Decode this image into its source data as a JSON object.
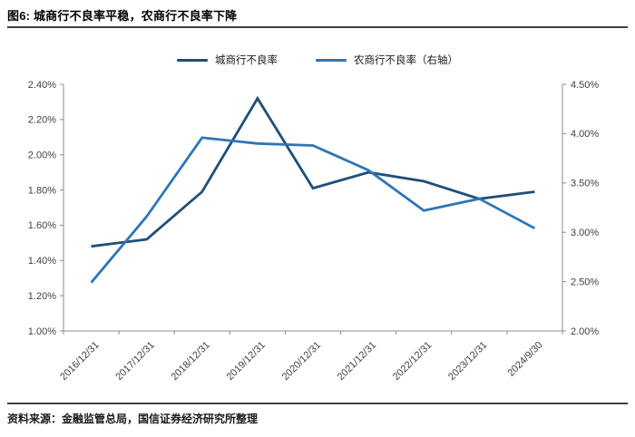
{
  "header": {
    "title": "图6: 城商行不良率平稳，农商行不良率下降"
  },
  "footer": {
    "source": "资料来源：金融监管总局，国信证券经济研究所整理"
  },
  "colors": {
    "series_city": "#1F4E79",
    "series_rural": "#2E75B6",
    "axis_line": "#8c8c8c",
    "tick_text": "#404040",
    "rule": "#3f3f3f"
  },
  "chart_data": {
    "type": "line",
    "title": "",
    "xlabel": "",
    "ylabel_left": "",
    "ylabel_right": "",
    "grid": false,
    "legend_position": "top",
    "categories": [
      "2016/12/31",
      "2017/12/31",
      "2018/12/31",
      "2019/12/31",
      "2020/12/31",
      "2021/12/31",
      "2022/12/31",
      "2023/12/31",
      "2024/9/30"
    ],
    "series": [
      {
        "name": "城商行不良率",
        "axis": "left",
        "color": "#1F4E79",
        "values": [
          1.48,
          1.52,
          1.79,
          2.32,
          1.81,
          1.9,
          1.85,
          1.75,
          1.79
        ]
      },
      {
        "name": "农商行不良率（右轴）",
        "axis": "right",
        "color": "#2E75B6",
        "values": [
          2.49,
          3.16,
          3.96,
          3.9,
          3.88,
          3.63,
          3.22,
          3.34,
          3.04
        ]
      }
    ],
    "left_axis": {
      "min": 1.0,
      "max": 2.4,
      "step": 0.2,
      "labels": [
        "2.40%",
        "2.20%",
        "2.00%",
        "1.80%",
        "1.60%",
        "1.40%",
        "1.20%",
        "1.00%"
      ]
    },
    "right_axis": {
      "min": 2.0,
      "max": 4.5,
      "step": 0.5,
      "labels": [
        "4.50%",
        "4.00%",
        "3.50%",
        "3.00%",
        "2.50%",
        "2.00%"
      ]
    }
  }
}
